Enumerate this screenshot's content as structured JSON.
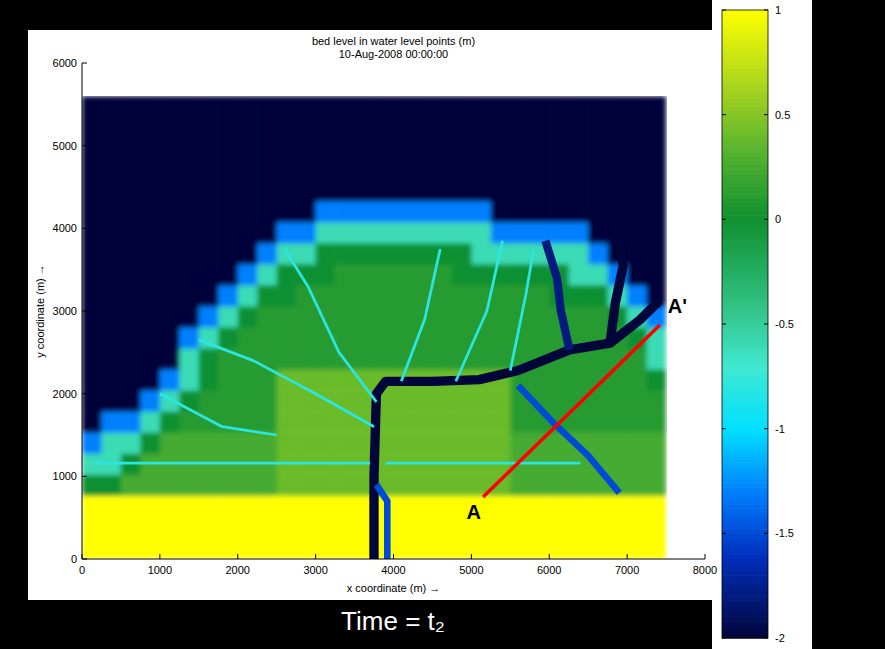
{
  "chart_data": {
    "type": "heatmap",
    "title": "bed level in water level points (m)",
    "subtitle": "10-Aug-2008 00:00:00",
    "x_label": "x coordinate (m) →",
    "y_label": "y coordinate (m) →",
    "xlim": [
      0,
      8000
    ],
    "ylim": [
      0,
      6000
    ],
    "xticks": [
      0,
      1000,
      2000,
      3000,
      4000,
      5000,
      6000,
      7000,
      8000
    ],
    "yticks": [
      0,
      1000,
      2000,
      3000,
      4000,
      5000,
      6000
    ],
    "heatmap": {
      "x_range": [
        0,
        7500
      ],
      "y_range": [
        0,
        5600
      ],
      "cells": [
        [
          1,
          1,
          1,
          1,
          1,
          1,
          1,
          1,
          1,
          1,
          1,
          1,
          1,
          1,
          1,
          1,
          1,
          1,
          1,
          1,
          1,
          1,
          1,
          1,
          1,
          1,
          1,
          1,
          1,
          1
        ],
        [
          1,
          1,
          1,
          1,
          1,
          1,
          1,
          1,
          1,
          1,
          1,
          1,
          1,
          1,
          1,
          1,
          1,
          1,
          1,
          1,
          1,
          1,
          1,
          1,
          1,
          1,
          1,
          1,
          1,
          1
        ],
        [
          1,
          1,
          1,
          1,
          1,
          1,
          1,
          1,
          1,
          1,
          1,
          1,
          1,
          1,
          1,
          1,
          1,
          1,
          1,
          1,
          1,
          1,
          1,
          1,
          1,
          1,
          1,
          1,
          1,
          1
        ],
        [
          0,
          0,
          0.25,
          0.25,
          0.25,
          0.25,
          0.25,
          0.25,
          0.25,
          0.25,
          0.4,
          0.4,
          0.4,
          0.4,
          0.4,
          0.4,
          0.4,
          0.4,
          0.4,
          0.4,
          0.4,
          0.4,
          0.25,
          0.25,
          0.25,
          0.25,
          0.25,
          0.25,
          0.25,
          0.25
        ],
        [
          -0.6,
          -0.6,
          0,
          0.25,
          0.25,
          0.25,
          0.25,
          0.25,
          0.25,
          0.25,
          0.4,
          0.4,
          0.4,
          0.4,
          0.4,
          0.4,
          0.4,
          0.4,
          0.4,
          0.4,
          0.4,
          0.4,
          0.25,
          0.25,
          0.25,
          0.25,
          0.25,
          0.25,
          0.25,
          0.25
        ],
        [
          -1.3,
          -0.6,
          -0.6,
          0,
          0.25,
          0.25,
          0.25,
          0.25,
          0.25,
          0.25,
          0.4,
          0.4,
          0.4,
          0.4,
          0.4,
          0.4,
          0.4,
          0.4,
          0.4,
          0.4,
          0.4,
          0.4,
          0.25,
          0.25,
          0.25,
          0.25,
          0.25,
          0.25,
          0.25,
          0.25
        ],
        [
          -2,
          -1.3,
          -1.3,
          -0.6,
          0,
          0.1,
          0.1,
          0.1,
          0.1,
          0.1,
          0.4,
          0.4,
          0.4,
          0.4,
          0.4,
          0.4,
          0.4,
          0.4,
          0.4,
          0.4,
          0.4,
          0.4,
          0.1,
          0.1,
          0.1,
          0.1,
          0.1,
          0.1,
          0.1,
          0.1
        ],
        [
          -2,
          -2,
          -2,
          -1.3,
          -0.6,
          0,
          0.1,
          0.1,
          0.1,
          0.1,
          0.4,
          0.4,
          0.4,
          0.4,
          0.4,
          0.4,
          0.4,
          0.4,
          0.4,
          0.4,
          0.4,
          0.4,
          0.1,
          0.1,
          0.1,
          0.1,
          0.1,
          0.1,
          0.1,
          0.1
        ],
        [
          -2,
          -2,
          -2,
          -2,
          -1.3,
          -0.6,
          0,
          0.1,
          0.1,
          0.1,
          0.4,
          0.4,
          0.4,
          0.4,
          0.4,
          0.4,
          0.4,
          0.4,
          0.4,
          0.4,
          0.4,
          0.4,
          0.1,
          0.1,
          0.1,
          0.1,
          0.1,
          0.1,
          0.1,
          0
        ],
        [
          -2,
          -2,
          -2,
          -2,
          -2,
          -0.6,
          0,
          0.1,
          0.1,
          0.1,
          0.1,
          0.1,
          0.1,
          0.1,
          0.1,
          0.1,
          0.1,
          0.1,
          0.1,
          0.1,
          0.1,
          0.1,
          0.1,
          0.1,
          0.1,
          0.1,
          0.1,
          0.1,
          0.1,
          -0.6
        ],
        [
          -2,
          -2,
          -2,
          -2,
          -2,
          -1.3,
          -0.6,
          0,
          0.1,
          0.1,
          0.1,
          0.1,
          0.1,
          0.1,
          0.1,
          0.1,
          0.1,
          0.1,
          0.1,
          0.1,
          0.1,
          0.1,
          0.1,
          0.1,
          0.1,
          0.1,
          0.1,
          0.1,
          0,
          -0.6
        ],
        [
          -2,
          -2,
          -2,
          -2,
          -2,
          -2,
          -1.3,
          -0.6,
          0,
          0.1,
          0.1,
          0.1,
          0.1,
          0.1,
          0.1,
          0.1,
          0.1,
          0.1,
          0.1,
          0.1,
          0.1,
          0.1,
          0.1,
          0.1,
          0.1,
          0.1,
          0.1,
          0,
          -0.6,
          -1.3
        ],
        [
          -2,
          -2,
          -2,
          -2,
          -2,
          -2,
          -2,
          -1.3,
          -0.6,
          0,
          0,
          0.1,
          0.1,
          0.1,
          0.1,
          0.1,
          0.1,
          0.1,
          0.1,
          0.1,
          0.1,
          0.1,
          0.1,
          0.1,
          0,
          0,
          0,
          -0.6,
          -1.3,
          -2
        ],
        [
          -2,
          -2,
          -2,
          -2,
          -2,
          -2,
          -2,
          -2,
          -1.3,
          -0.6,
          0,
          0,
          0,
          0.1,
          0.1,
          0.1,
          0.1,
          0.1,
          0.1,
          0,
          0,
          0,
          0,
          0,
          0,
          -0.6,
          -0.6,
          -1.3,
          -2,
          -2
        ],
        [
          -2,
          -2,
          -2,
          -2,
          -2,
          -2,
          -2,
          -2,
          -2,
          -1.3,
          -0.6,
          -0.6,
          0,
          0,
          0,
          0,
          0,
          0,
          0,
          0,
          -0.6,
          -0.6,
          -0.6,
          -0.6,
          -0.6,
          -0.6,
          -1.3,
          -2,
          -2,
          -2
        ],
        [
          -2,
          -2,
          -2,
          -2,
          -2,
          -2,
          -2,
          -2,
          -2,
          -2,
          -1.3,
          -1.3,
          -0.6,
          -0.6,
          -0.6,
          -0.6,
          -0.6,
          -0.6,
          -0.6,
          -0.6,
          -0.6,
          -1.3,
          -1.3,
          -1.3,
          -1.3,
          -1.3,
          -2,
          -2,
          -2,
          -2
        ],
        [
          -2,
          -2,
          -2,
          -2,
          -2,
          -2,
          -2,
          -2,
          -2,
          -2,
          -2,
          -2,
          -1.3,
          -1.3,
          -1.3,
          -1.3,
          -1.3,
          -1.3,
          -1.3,
          -1.3,
          -1.3,
          -2,
          -2,
          -2,
          -2,
          -2,
          -2,
          -2,
          -2,
          -2
        ],
        [
          -2,
          -2,
          -2,
          -2,
          -2,
          -2,
          -2,
          -2,
          -2,
          -2,
          -2,
          -2,
          -2,
          -2,
          -2,
          -2,
          -2,
          -2,
          -2,
          -2,
          -2,
          -2,
          -2,
          -2,
          -2,
          -2,
          -2,
          -2,
          -2,
          -2
        ],
        [
          -2,
          -2,
          -2,
          -2,
          -2,
          -2,
          -2,
          -2,
          -2,
          -2,
          -2,
          -2,
          -2,
          -2,
          -2,
          -2,
          -2,
          -2,
          -2,
          -2,
          -2,
          -2,
          -2,
          -2,
          -2,
          -2,
          -2,
          -2,
          -2,
          -2
        ],
        [
          -2,
          -2,
          -2,
          -2,
          -2,
          -2,
          -2,
          -2,
          -2,
          -2,
          -2,
          -2,
          -2,
          -2,
          -2,
          -2,
          -2,
          -2,
          -2,
          -2,
          -2,
          -2,
          -2,
          -2,
          -2,
          -2,
          -2,
          -2,
          -2,
          -2
        ],
        [
          -2,
          -2,
          -2,
          -2,
          -2,
          -2,
          -2,
          -2,
          -2,
          -2,
          -2,
          -2,
          -2,
          -2,
          -2,
          -2,
          -2,
          -2,
          -2,
          -2,
          -2,
          -2,
          -2,
          -2,
          -2,
          -2,
          -2,
          -2,
          -2,
          -2
        ],
        [
          -2,
          -2,
          -2,
          -2,
          -2,
          -2,
          -2,
          -2,
          -2,
          -2,
          -2,
          -2,
          -2,
          -2,
          -2,
          -2,
          -2,
          -2,
          -2,
          -2,
          -2,
          -2,
          -2,
          -2,
          -2,
          -2,
          -2,
          -2,
          -2,
          -2
        ]
      ]
    },
    "colorbar": {
      "lim": [
        -2,
        1
      ],
      "ticks": [
        1,
        0.5,
        0,
        -0.5,
        -1,
        -1.5,
        -2
      ]
    },
    "channels": [
      {
        "level": -2,
        "points": [
          [
            3750,
            0
          ],
          [
            3750,
            1000
          ],
          [
            3780,
            2000
          ],
          [
            3900,
            2150
          ],
          [
            4500,
            2150
          ],
          [
            5100,
            2170
          ],
          [
            5600,
            2280
          ],
          [
            6260,
            2530
          ],
          [
            6780,
            2610
          ],
          [
            7160,
            2890
          ],
          [
            7420,
            3130
          ]
        ]
      },
      {
        "level": -1.5,
        "points": [
          [
            3920,
            0
          ],
          [
            3920,
            700
          ],
          [
            3780,
            900
          ]
        ]
      },
      {
        "level": -2,
        "points": [
          [
            6780,
            2610
          ],
          [
            6850,
            3100
          ],
          [
            6950,
            3550
          ],
          [
            6900,
            3850
          ]
        ]
      },
      {
        "level": -1.8,
        "points": [
          [
            6260,
            2530
          ],
          [
            6150,
            3000
          ],
          [
            6100,
            3400
          ],
          [
            5950,
            3850
          ]
        ]
      },
      {
        "level": -1.5,
        "points": [
          [
            5600,
            2100
          ],
          [
            6050,
            1650
          ],
          [
            6500,
            1250
          ],
          [
            6900,
            800
          ]
        ]
      },
      {
        "level": -0.8,
        "points": [
          [
            3780,
            1900
          ],
          [
            3300,
            2500
          ],
          [
            2900,
            3300
          ],
          [
            2600,
            3750
          ]
        ]
      },
      {
        "level": -0.8,
        "points": [
          [
            3750,
            1600
          ],
          [
            3000,
            2000
          ],
          [
            2200,
            2400
          ],
          [
            1500,
            2650
          ]
        ]
      },
      {
        "level": -0.8,
        "points": [
          [
            150,
            1160
          ],
          [
            3700,
            1160
          ]
        ]
      },
      {
        "level": -0.8,
        "points": [
          [
            3900,
            1160
          ],
          [
            6400,
            1160
          ]
        ]
      },
      {
        "level": -0.8,
        "points": [
          [
            4100,
            2150
          ],
          [
            4400,
            2900
          ],
          [
            4600,
            3750
          ]
        ]
      },
      {
        "level": -0.8,
        "points": [
          [
            4800,
            2150
          ],
          [
            5200,
            3000
          ],
          [
            5400,
            3850
          ]
        ]
      },
      {
        "level": -0.8,
        "points": [
          [
            5500,
            2280
          ],
          [
            5700,
            3200
          ],
          [
            5800,
            3750
          ]
        ]
      },
      {
        "level": -0.8,
        "points": [
          [
            1000,
            2000
          ],
          [
            1800,
            1600
          ],
          [
            2500,
            1500
          ]
        ]
      }
    ],
    "annotations": {
      "section": {
        "start_label": "A",
        "end_label": "A'",
        "start": [
          5150,
          750
        ],
        "end": [
          7420,
          2830
        ]
      },
      "caption": "Time = t₂"
    }
  }
}
